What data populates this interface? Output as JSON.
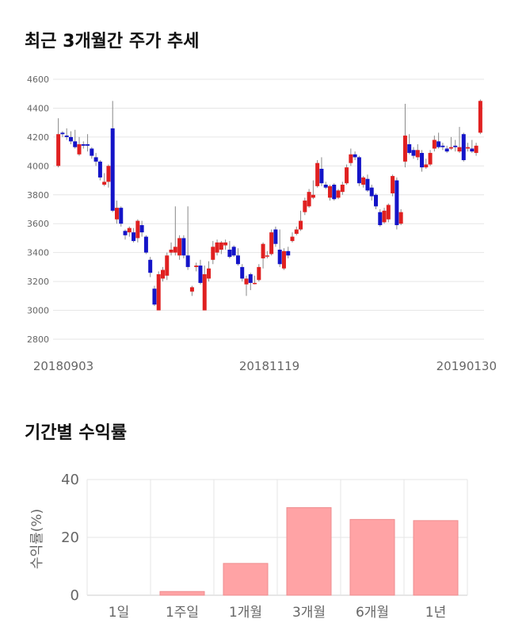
{
  "sections": {
    "price_title": "최근 3개월간 주가 추세",
    "return_title": "기간별 수익률"
  },
  "chart_data": [
    {
      "type": "candlestick",
      "title": "최근 3개월간 주가 추세",
      "ylim": [
        2800,
        4600
      ],
      "y_ticks": [
        "4600",
        "4400",
        "4200",
        "4000",
        "3800",
        "3600",
        "3400",
        "3200",
        "3000",
        "2800"
      ],
      "x_labels": [
        "20180903",
        "20181119",
        "20190130"
      ],
      "grid": true,
      "colors": {
        "up": "#e02020",
        "down": "#1414c8",
        "grid": "#e6e6e6"
      },
      "candles": [
        [
          4000,
          4220,
          4330,
          3990
        ],
        [
          4230,
          4220,
          4240,
          4200
        ],
        [
          4210,
          4200,
          4260,
          4180
        ],
        [
          4200,
          4170,
          4240,
          4150
        ],
        [
          4170,
          4130,
          4250,
          4120
        ],
        [
          4080,
          4150,
          4200,
          4070
        ],
        [
          4150,
          4140,
          4170,
          4120
        ],
        [
          4150,
          4140,
          4220,
          4100
        ],
        [
          4120,
          4070,
          4130,
          4050
        ],
        [
          4060,
          4030,
          4090,
          4000
        ],
        [
          4030,
          3920,
          4040,
          3900
        ],
        [
          3870,
          3890,
          3950,
          3860
        ],
        [
          3890,
          4000,
          4010,
          3850
        ],
        [
          4260,
          3690,
          4450,
          3680
        ],
        [
          3630,
          3710,
          3760,
          3600
        ],
        [
          3710,
          3600,
          3720,
          3580
        ],
        [
          3550,
          3520,
          3560,
          3490
        ],
        [
          3540,
          3570,
          3580,
          3510
        ],
        [
          3540,
          3480,
          3570,
          3470
        ],
        [
          3500,
          3620,
          3630,
          3470
        ],
        [
          3590,
          3540,
          3620,
          3510
        ],
        [
          3510,
          3400,
          3520,
          3390
        ],
        [
          3350,
          3260,
          3370,
          3230
        ],
        [
          3150,
          3040,
          3170,
          3030
        ],
        [
          3000,
          3250,
          3270,
          3000
        ],
        [
          3220,
          3280,
          3300,
          3200
        ],
        [
          3240,
          3380,
          3400,
          3210
        ],
        [
          3400,
          3420,
          3470,
          3380
        ],
        [
          3400,
          3440,
          3720,
          3380
        ],
        [
          3380,
          3500,
          3520,
          3350
        ],
        [
          3500,
          3380,
          3520,
          3360
        ],
        [
          3380,
          3300,
          3720,
          3280
        ],
        [
          3130,
          3160,
          3170,
          3100
        ],
        [
          3300,
          3310,
          3330,
          3270
        ],
        [
          3310,
          3190,
          3350,
          3180
        ],
        [
          3000,
          3250,
          3310,
          3000
        ],
        [
          3220,
          3290,
          3340,
          3200
        ],
        [
          3350,
          3440,
          3480,
          3320
        ],
        [
          3400,
          3470,
          3490,
          3380
        ],
        [
          3420,
          3470,
          3480,
          3390
        ],
        [
          3450,
          3470,
          3490,
          3420
        ],
        [
          3420,
          3370,
          3480,
          3360
        ],
        [
          3440,
          3380,
          3450,
          3370
        ],
        [
          3380,
          3320,
          3430,
          3310
        ],
        [
          3300,
          3220,
          3320,
          3200
        ],
        [
          3180,
          3220,
          3240,
          3100
        ],
        [
          3250,
          3190,
          3260,
          3140
        ],
        [
          3190,
          3190,
          3240,
          3180
        ],
        [
          3210,
          3300,
          3320,
          3200
        ],
        [
          3360,
          3460,
          3470,
          3290
        ],
        [
          3380,
          3380,
          3410,
          3360
        ],
        [
          3390,
          3540,
          3560,
          3380
        ],
        [
          3560,
          3460,
          3580,
          3440
        ],
        [
          3420,
          3320,
          3560,
          3300
        ],
        [
          3290,
          3410,
          3430,
          3280
        ],
        [
          3410,
          3380,
          3440,
          3360
        ],
        [
          3480,
          3510,
          3540,
          3470
        ],
        [
          3530,
          3560,
          3580,
          3520
        ],
        [
          3560,
          3620,
          3690,
          3550
        ],
        [
          3680,
          3760,
          3780,
          3660
        ],
        [
          3720,
          3820,
          3840,
          3710
        ],
        [
          3780,
          3800,
          3900,
          3770
        ],
        [
          3860,
          4020,
          4040,
          3850
        ],
        [
          3980,
          3880,
          4060,
          3860
        ],
        [
          3870,
          3850,
          3890,
          3840
        ],
        [
          3780,
          3860,
          3870,
          3760
        ],
        [
          3870,
          3770,
          3880,
          3760
        ],
        [
          3780,
          3830,
          3840,
          3770
        ],
        [
          3820,
          3870,
          3890,
          3800
        ],
        [
          3880,
          3990,
          4010,
          3870
        ],
        [
          4020,
          4080,
          4120,
          4000
        ],
        [
          4080,
          4060,
          4100,
          4040
        ],
        [
          4060,
          3880,
          4070,
          3860
        ],
        [
          3870,
          3920,
          3930,
          3850
        ],
        [
          3910,
          3830,
          3940,
          3820
        ],
        [
          3850,
          3790,
          3870,
          3760
        ],
        [
          3800,
          3720,
          3810,
          3700
        ],
        [
          3680,
          3590,
          3700,
          3580
        ],
        [
          3610,
          3690,
          3710,
          3600
        ],
        [
          3630,
          3730,
          3740,
          3610
        ],
        [
          3810,
          3930,
          3940,
          3790
        ],
        [
          3900,
          3590,
          3920,
          3560
        ],
        [
          3600,
          3680,
          3700,
          3590
        ],
        [
          4030,
          4210,
          4430,
          3990
        ],
        [
          4150,
          4090,
          4220,
          4080
        ],
        [
          4110,
          4070,
          4130,
          4050
        ],
        [
          4060,
          4110,
          4150,
          4040
        ],
        [
          4090,
          3990,
          4110,
          3960
        ],
        [
          3990,
          4010,
          4050,
          3980
        ],
        [
          4010,
          4090,
          4110,
          4000
        ],
        [
          4120,
          4180,
          4210,
          4100
        ],
        [
          4170,
          4130,
          4230,
          4120
        ],
        [
          4140,
          4130,
          4160,
          4110
        ],
        [
          4120,
          4100,
          4140,
          4090
        ],
        [
          4120,
          4130,
          4200,
          4110
        ],
        [
          4140,
          4130,
          4180,
          4100
        ],
        [
          4100,
          4130,
          4270,
          4090
        ],
        [
          4220,
          4040,
          4230,
          4030
        ],
        [
          4120,
          4130,
          4160,
          4100
        ],
        [
          4120,
          4100,
          4180,
          4090
        ],
        [
          4090,
          4140,
          4160,
          4070
        ],
        [
          4230,
          4450,
          4460,
          4220
        ]
      ]
    },
    {
      "type": "bar",
      "title": "기간별 수익률",
      "ylabel": "수익률(%)",
      "ylim": [
        0,
        40
      ],
      "y_ticks": [
        "40",
        "20",
        "0"
      ],
      "categories": [
        "1일",
        "1주일",
        "1개월",
        "3개월",
        "6개월",
        "1년"
      ],
      "values": [
        0,
        1.3,
        11.0,
        30.3,
        26.2,
        25.8
      ],
      "colors": {
        "bar_fill": "#ffa3a5",
        "bar_stroke": "#ee8e90",
        "grid": "#e6e6e6"
      }
    }
  ]
}
